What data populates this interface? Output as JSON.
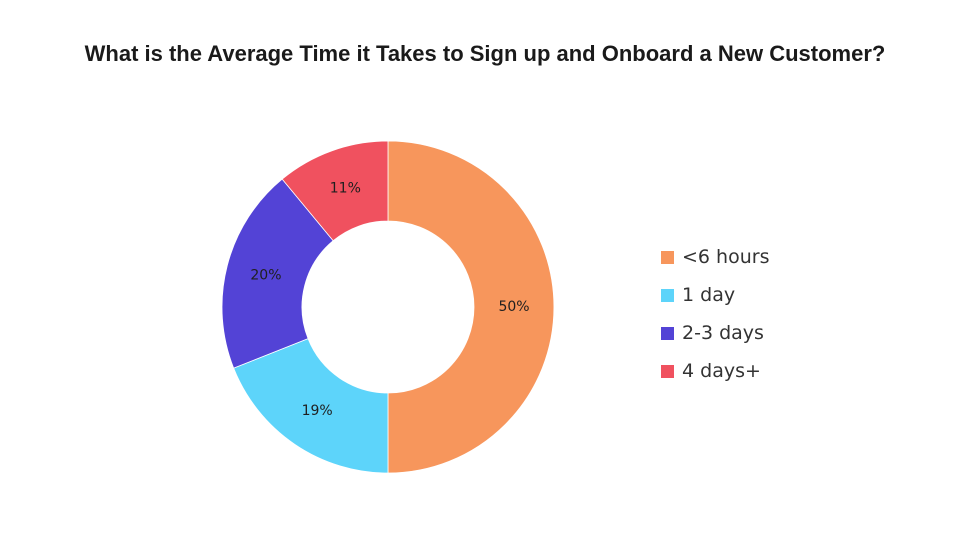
{
  "chart_data": {
    "type": "pie",
    "variant": "donut",
    "title": "What is the Average Time it Takes to Sign up and Onboard a New Customer?",
    "categories": [
      "<6 hours",
      "1 day",
      "2-3 days",
      "4 days+"
    ],
    "values": [
      50,
      19,
      20,
      11
    ],
    "value_labels": [
      "50%",
      "19%",
      "20%",
      "11%"
    ],
    "colors": [
      "#F7965C",
      "#5DD4FA",
      "#5343D6",
      "#F0515F"
    ],
    "label_colors": [
      "#ffffff",
      "#1f1f1f",
      "#ffffff",
      "#ffffff"
    ],
    "legend_placement": "right"
  }
}
